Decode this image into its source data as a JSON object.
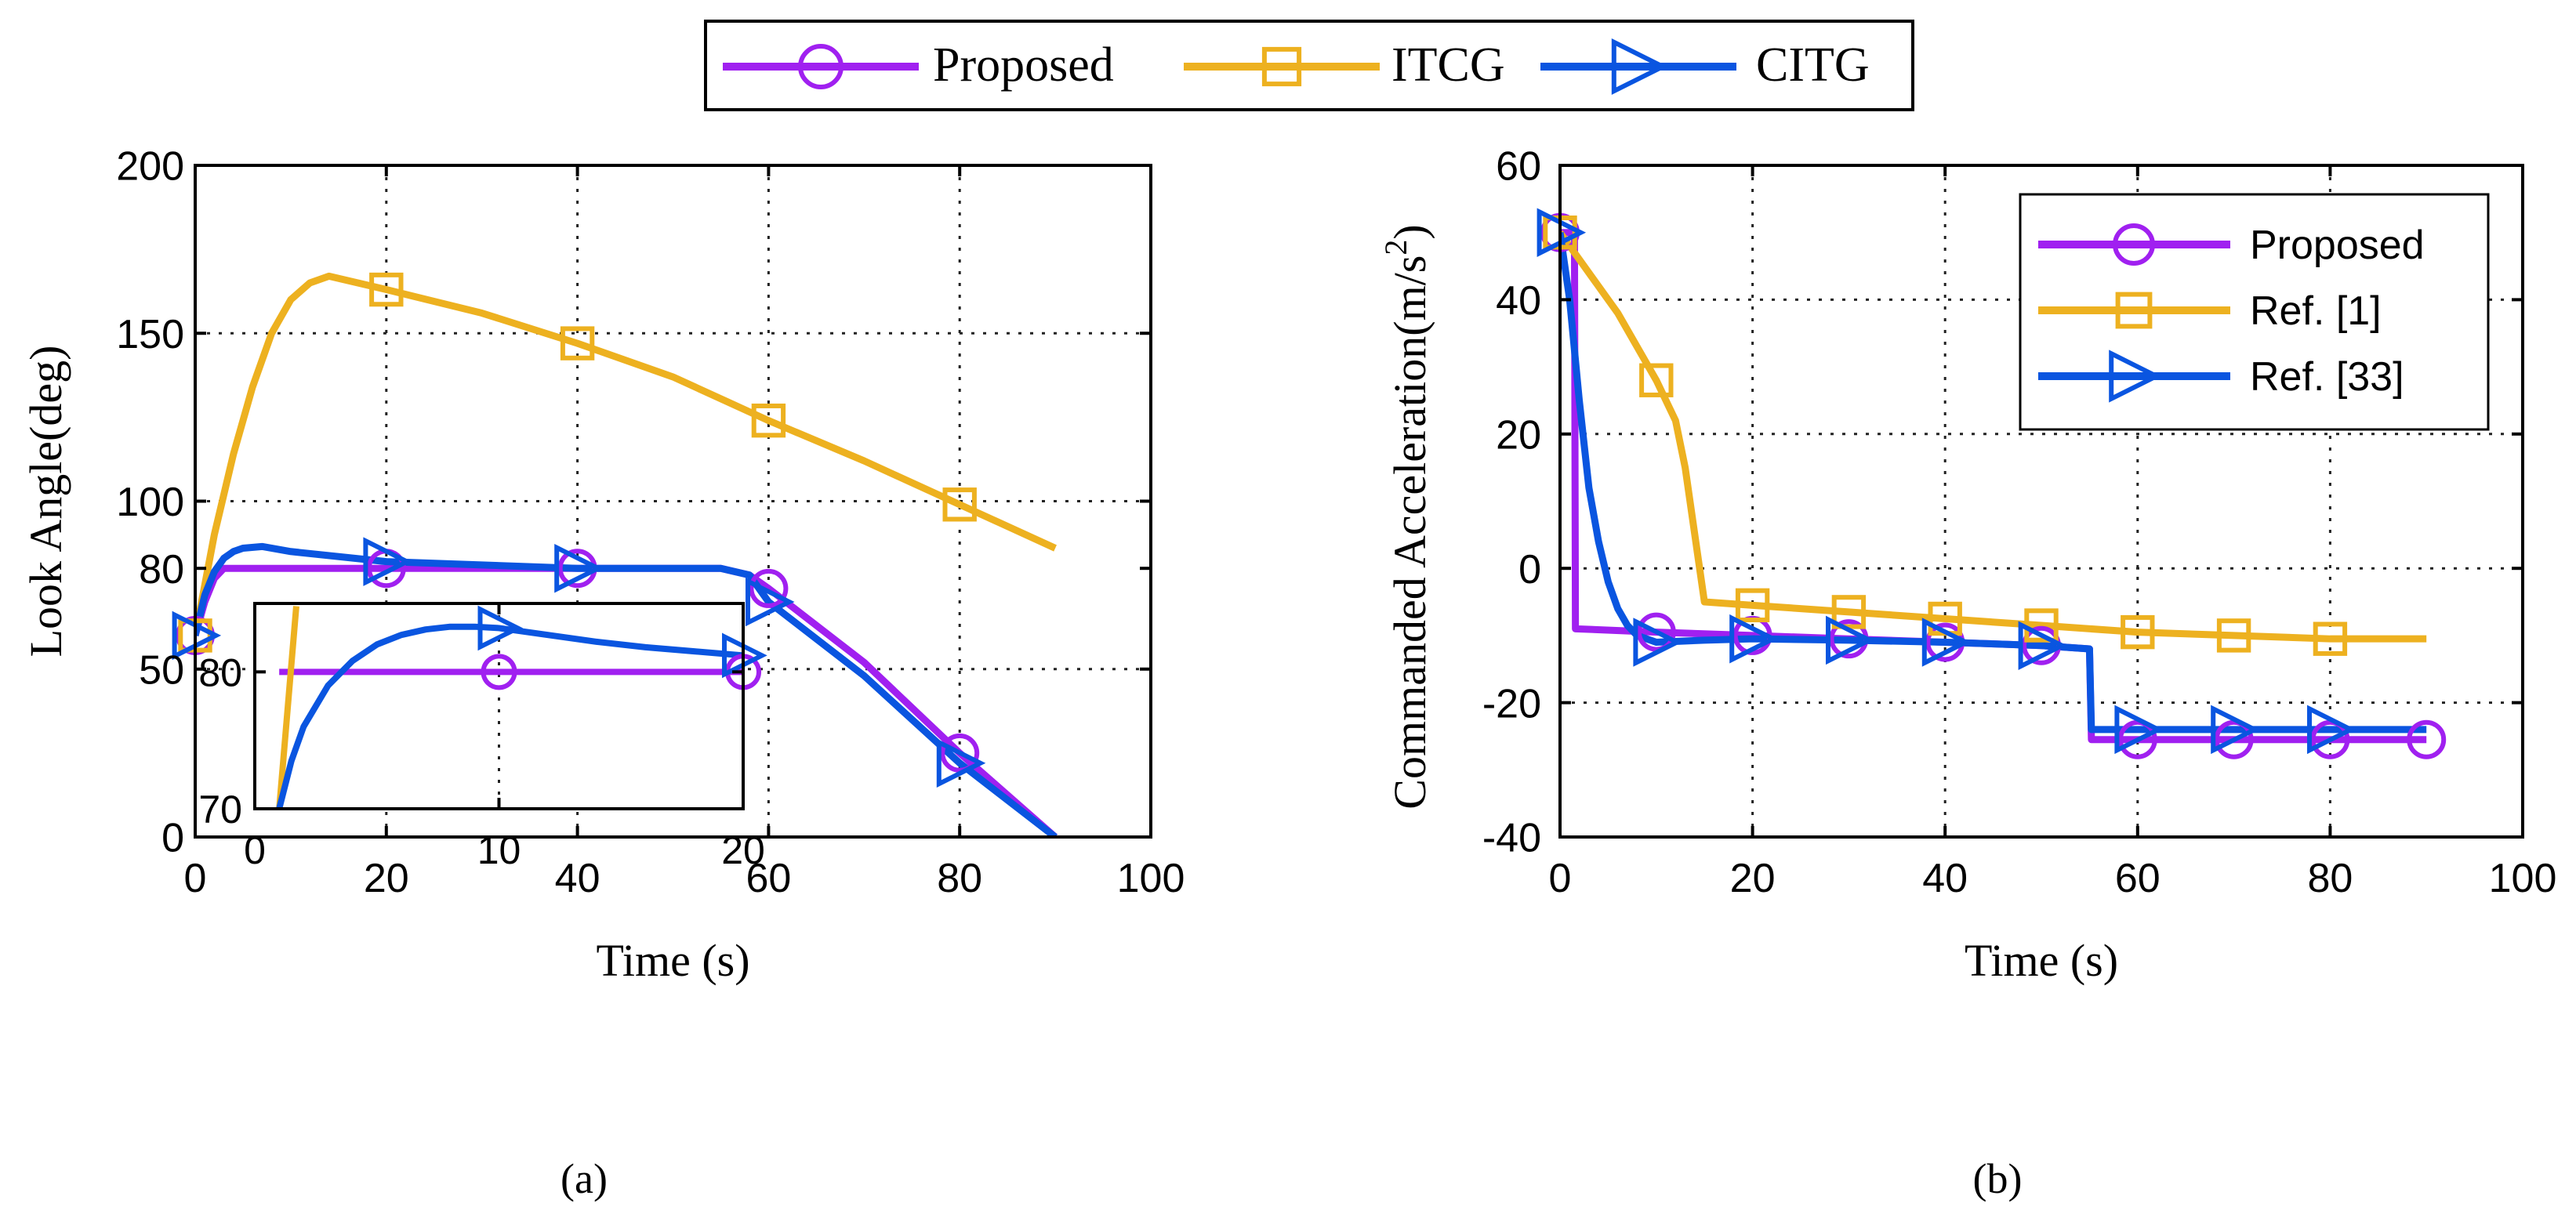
{
  "colors": {
    "proposed": "#A020F0",
    "itcg": "#EDB120",
    "citg": "#0A55E0",
    "grid": "#222222"
  },
  "top_legend": {
    "entries": [
      "Proposed",
      "ITCG",
      "CITG"
    ]
  },
  "chart_data": [
    {
      "id": "a",
      "caption": "(a)",
      "type": "line",
      "xlabel": "Time (s)",
      "ylabel": "Look Angle(deg)",
      "xlim": [
        0,
        100
      ],
      "ylim": [
        0,
        200
      ],
      "xticks": [
        0,
        20,
        40,
        60,
        80,
        100
      ],
      "yticks": [
        0,
        50,
        80,
        100,
        150,
        200
      ],
      "grid": true,
      "series": [
        {
          "name": "Proposed",
          "color_key": "proposed",
          "marker": "circle",
          "x": [
            0,
            1,
            2,
            3,
            4,
            5,
            6,
            10,
            20,
            40,
            55,
            58,
            60,
            70,
            80,
            90
          ],
          "y": [
            60,
            70,
            77,
            80,
            80,
            80,
            80,
            80,
            80,
            80,
            80,
            78,
            74,
            52,
            25,
            0
          ],
          "marker_x": [
            0,
            20,
            40,
            60,
            80
          ],
          "marker_y": [
            60,
            80,
            80,
            74,
            25
          ]
        },
        {
          "name": "ITCG",
          "color_key": "itcg",
          "marker": "square",
          "x": [
            0,
            2,
            4,
            6,
            8,
            10,
            12,
            14,
            20,
            30,
            40,
            50,
            60,
            70,
            80,
            90
          ],
          "y": [
            60,
            90,
            114,
            134,
            150,
            160,
            165,
            167,
            163,
            156,
            147,
            137,
            124,
            112,
            99,
            86
          ],
          "marker_x": [
            0,
            20,
            40,
            60,
            80
          ],
          "marker_y": [
            60,
            163,
            147,
            124,
            99
          ]
        },
        {
          "name": "CITG",
          "color_key": "citg",
          "marker": "triangle-right",
          "x": [
            0,
            1,
            2,
            3,
            4,
            5,
            7,
            10,
            20,
            40,
            55,
            58,
            60,
            70,
            80,
            90
          ],
          "y": [
            60,
            72,
            79,
            83,
            85,
            86,
            86.5,
            85,
            82,
            80,
            80,
            78,
            70,
            48,
            22,
            0
          ],
          "marker_x": [
            0,
            20,
            40,
            60,
            80
          ],
          "marker_y": [
            60,
            82,
            80,
            70,
            22
          ]
        }
      ],
      "inset": {
        "xlim": [
          0,
          20
        ],
        "ylim": [
          70,
          85
        ],
        "xticks": [
          0,
          10,
          20
        ],
        "yticks": [
          70,
          80
        ],
        "series": [
          {
            "name": "Proposed",
            "color_key": "proposed",
            "marker": "circle",
            "x": [
              1,
              1.5,
              20
            ],
            "y": [
              80,
              80,
              80
            ],
            "marker_x": [
              10,
              20
            ],
            "marker_y": [
              80,
              80
            ]
          },
          {
            "name": "ITCG",
            "color_key": "itcg",
            "marker": "square",
            "x": [
              1,
              1.7
            ],
            "y": [
              70,
              84.8
            ],
            "marker_x": [],
            "marker_y": []
          },
          {
            "name": "CITG",
            "color_key": "citg",
            "marker": "triangle-right",
            "x": [
              1,
              1.5,
              2,
              3,
              4,
              5,
              6,
              7,
              8,
              9,
              10,
              12,
              14,
              16,
              18,
              20
            ],
            "y": [
              70,
              73.5,
              76,
              79,
              80.8,
              82,
              82.7,
              83.1,
              83.3,
              83.3,
              83.2,
              82.7,
              82.2,
              81.8,
              81.5,
              81.2
            ],
            "marker_x": [
              10,
              20
            ],
            "marker_y": [
              83.2,
              81.2
            ]
          }
        ]
      }
    },
    {
      "id": "b",
      "caption": "(b)",
      "type": "line",
      "xlabel": "Time (s)",
      "ylabel": "Commanded Acceleration(m/s",
      "ylabel_sup": "2",
      "ylabel_end": ")",
      "xlim": [
        0,
        100
      ],
      "ylim": [
        -40,
        60
      ],
      "xticks": [
        0,
        20,
        40,
        60,
        80,
        100
      ],
      "yticks": [
        -40,
        -20,
        0,
        20,
        40,
        60
      ],
      "grid": true,
      "legend": {
        "position": "top-right",
        "entries": [
          "Proposed",
          "Ref. [1]",
          "Ref. [33]"
        ]
      },
      "series": [
        {
          "name": "Proposed",
          "color_key": "proposed",
          "marker": "circle",
          "x": [
            0,
            1.5,
            1.6,
            10,
            20,
            30,
            40,
            50,
            55,
            55.2,
            60,
            70,
            80,
            90
          ],
          "y": [
            50,
            50,
            -9,
            -9.5,
            -10,
            -10.5,
            -11,
            -11.5,
            -12,
            -25.5,
            -25.5,
            -25.5,
            -25.5,
            -25.5
          ],
          "marker_x": [
            0,
            10,
            20,
            30,
            40,
            50,
            60,
            70,
            80,
            90
          ],
          "marker_y": [
            50,
            -9.5,
            -10,
            -10.5,
            -11,
            -11.5,
            -25.5,
            -25.5,
            -25.5,
            -25.5
          ]
        },
        {
          "name": "Ref. [1]",
          "color_key": "itcg",
          "marker": "square",
          "x": [
            0,
            2,
            4,
            6,
            8,
            10,
            12,
            13,
            14,
            15,
            20,
            30,
            40,
            50,
            60,
            70,
            80,
            90
          ],
          "y": [
            50,
            46,
            42,
            38,
            33,
            28,
            22,
            15,
            5,
            -5,
            -5.5,
            -6.5,
            -7.5,
            -8.5,
            -9.5,
            -10,
            -10.5,
            -10.5
          ],
          "marker_x": [
            0,
            10,
            20,
            30,
            40,
            50,
            60,
            70,
            80
          ],
          "marker_y": [
            50,
            28,
            -5.5,
            -6.5,
            -7.5,
            -8.5,
            -9.5,
            -10,
            -10.5
          ]
        },
        {
          "name": "Ref. [33]",
          "color_key": "citg",
          "marker": "triangle-right",
          "x": [
            0,
            1,
            2,
            3,
            4,
            5,
            6,
            7,
            8,
            10,
            15,
            20,
            30,
            40,
            50,
            55,
            55.2,
            60,
            70,
            80,
            90
          ],
          "y": [
            50,
            40,
            25,
            12,
            4,
            -2,
            -6,
            -8.5,
            -10,
            -11,
            -10.7,
            -10.5,
            -10.7,
            -11,
            -11.5,
            -12,
            -24,
            -24,
            -24,
            -24,
            -24
          ],
          "marker_x": [
            0,
            10,
            20,
            30,
            40,
            50,
            60,
            70,
            80
          ],
          "marker_y": [
            50,
            -11,
            -10.5,
            -10.7,
            -11,
            -11.5,
            -24,
            -24,
            -24
          ]
        }
      ]
    }
  ]
}
